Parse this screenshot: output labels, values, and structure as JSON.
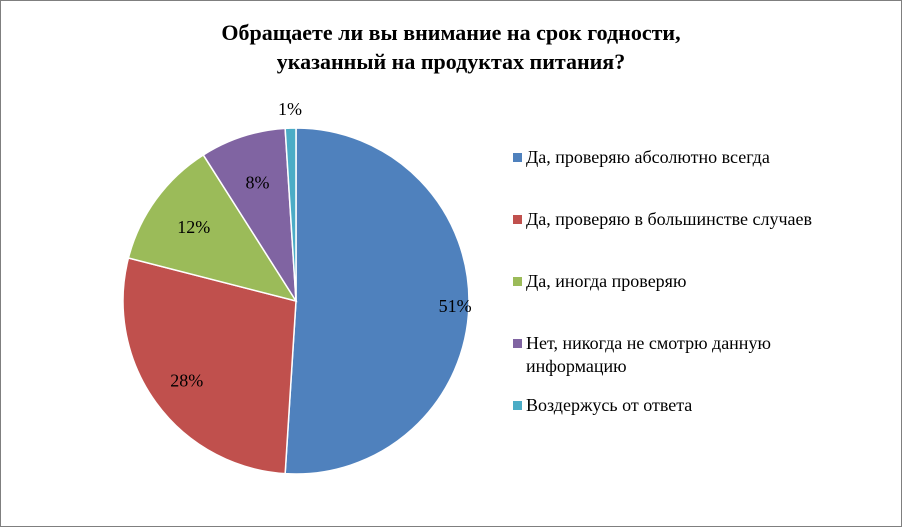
{
  "chart_data": {
    "type": "pie",
    "title_lines": [
      "Обращаете ли вы внимание на срок годности,",
      "указанный на продуктах питания?"
    ],
    "categories": [
      "Да, проверяю абсолютно всегда",
      "Да, проверяю в большинстве случаев",
      "Да, иногда проверяю",
      "Нет, никогда не смотрю данную информацию",
      "Воздержусь от ответа"
    ],
    "values": [
      51,
      28,
      12,
      8,
      1
    ],
    "data_labels": [
      "51%",
      "28%",
      "12%",
      "8%",
      "1%"
    ],
    "colors": [
      "#4F81BD",
      "#C0504D",
      "#9BBB59",
      "#8064A2",
      "#4BACC6"
    ],
    "legend_position": "right"
  }
}
